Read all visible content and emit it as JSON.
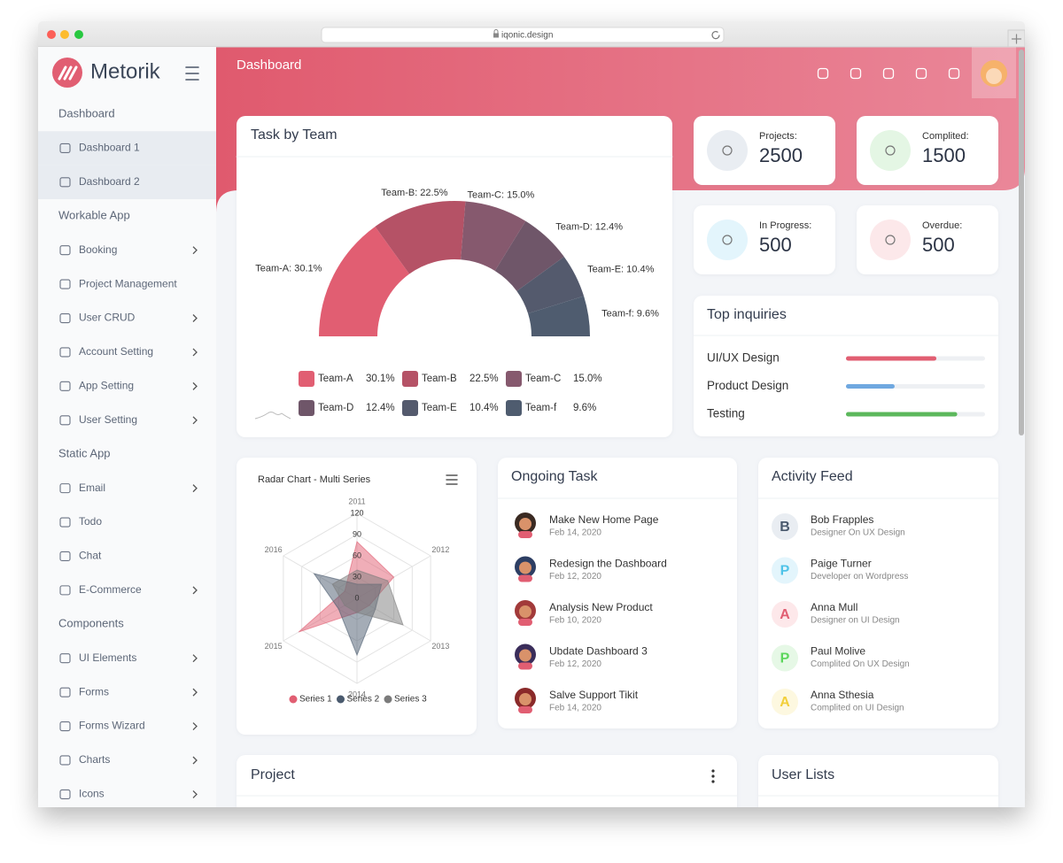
{
  "browser": {
    "url": "iqonic.design"
  },
  "sidebar": {
    "brand": "Metorik",
    "sections": [
      {
        "title": "Dashboard",
        "items": [
          {
            "label": "Dashboard 1",
            "active": true
          },
          {
            "label": "Dashboard 2",
            "active": true
          }
        ]
      },
      {
        "title": "Workable App",
        "items": [
          {
            "label": "Booking",
            "submenu": true
          },
          {
            "label": "Project Management"
          },
          {
            "label": "User CRUD",
            "submenu": true
          },
          {
            "label": "Account Setting",
            "submenu": true
          },
          {
            "label": "App Setting",
            "submenu": true
          },
          {
            "label": "User Setting",
            "submenu": true
          }
        ]
      },
      {
        "title": "Static App",
        "items": [
          {
            "label": "Email",
            "submenu": true
          },
          {
            "label": "Todo"
          },
          {
            "label": "Chat"
          },
          {
            "label": "E-Commerce",
            "submenu": true
          }
        ]
      },
      {
        "title": "Components",
        "items": [
          {
            "label": "UI Elements",
            "submenu": true
          },
          {
            "label": "Forms",
            "submenu": true
          },
          {
            "label": "Forms Wizard",
            "submenu": true
          },
          {
            "label": "Charts",
            "submenu": true
          },
          {
            "label": "Icons",
            "submenu": true
          }
        ]
      }
    ]
  },
  "header": {
    "title": "Dashboard"
  },
  "task_by_team": {
    "title": "Task by Team",
    "chart_data": {
      "type": "half-donut",
      "categories": [
        "Team-A",
        "Team-B",
        "Team-C",
        "Team-D",
        "Team-E",
        "Team-f"
      ],
      "values": [
        30.1,
        22.5,
        15.0,
        12.4,
        10.4,
        9.6
      ],
      "value_labels": [
        "30.1%",
        "22.5%",
        "15.0%",
        "12.4%",
        "10.4%",
        "9.6%"
      ],
      "callout_labels": [
        "Team-A: 30.1%",
        "Team-B: 22.5%",
        "Team-C: 15.0%",
        "Team-D: 12.4%",
        "Team-E: 10.4%",
        "Team-f: 9.6%"
      ],
      "colors": [
        "#e15e72",
        "#b55266",
        "#86596e",
        "#6f5669",
        "#545a6d",
        "#4f5c6f"
      ]
    }
  },
  "stats": [
    {
      "label": "Projects:",
      "value": 2500,
      "color": "#e9edf2"
    },
    {
      "label": "Complited:",
      "value": 1500,
      "color": "#e4f6e4"
    },
    {
      "label": "In Progress:",
      "value": 500,
      "color": "#e3f5fc"
    },
    {
      "label": "Overdue:",
      "value": 500,
      "color": "#fce8ea"
    }
  ],
  "top_inquiries": {
    "title": "Top inquiries",
    "xlim": [
      0,
      100
    ],
    "items": [
      {
        "label": "UI/UX Design",
        "value": 65,
        "color": "#e15e72"
      },
      {
        "label": "Product Design",
        "value": 35,
        "color": "#6fa8e0"
      },
      {
        "label": "Testing",
        "value": 80,
        "color": "#5cb85c"
      }
    ]
  },
  "radar": {
    "chart_data": {
      "type": "radar",
      "title": "Radar Chart - Multi Series",
      "categories": [
        "2011",
        "2012",
        "2013",
        "2014",
        "2015",
        "2016"
      ],
      "rlim": [
        0,
        120
      ],
      "rticks": [
        0,
        30,
        60,
        90,
        120
      ],
      "series": [
        {
          "name": "Series 1",
          "color": "#e15e72",
          "values": [
            80,
            60,
            20,
            20,
            95,
            20
          ]
        },
        {
          "name": "Series 2",
          "color": "#4a5a6e",
          "values": [
            20,
            40,
            30,
            80,
            30,
            70
          ]
        },
        {
          "name": "Series 3",
          "color": "#7b7b7b",
          "values": [
            40,
            50,
            75,
            20,
            20,
            40
          ]
        }
      ]
    }
  },
  "ongoing_task": {
    "title": "Ongoing Task",
    "items": [
      {
        "name": "Make New Home Page",
        "date": "Feb 14, 2020"
      },
      {
        "name": "Redesign the Dashboard",
        "date": "Feb 12, 2020"
      },
      {
        "name": "Analysis New Product",
        "date": "Feb 10, 2020"
      },
      {
        "name": "Ubdate Dashboard 3",
        "date": "Feb 12, 2020"
      },
      {
        "name": "Salve Support Tikit",
        "date": "Feb 14, 2020"
      }
    ]
  },
  "activity_feed": {
    "title": "Activity Feed",
    "items": [
      {
        "initial": "B",
        "name": "Bob Frapples",
        "role": "Designer On UX Design",
        "color": "#4a5a6e",
        "bg": "#e9edf2"
      },
      {
        "initial": "P",
        "name": "Paige Turner",
        "role": "Developer on Wordpress",
        "color": "#4fc3e8",
        "bg": "#e3f5fc"
      },
      {
        "initial": "A",
        "name": "Anna Mull",
        "role": "Designer on UI Design",
        "color": "#e15e72",
        "bg": "#fde8ea"
      },
      {
        "initial": "P",
        "name": "Paul Molive",
        "role": "Complited On UX Design",
        "color": "#5cd65c",
        "bg": "#e6f8e6"
      },
      {
        "initial": "A",
        "name": "Anna Sthesia",
        "role": "Complited on UI Design",
        "color": "#f2cf3a",
        "bg": "#fdf8e0"
      }
    ]
  },
  "project": {
    "title": "Project"
  },
  "user_lists": {
    "title": "User Lists"
  }
}
